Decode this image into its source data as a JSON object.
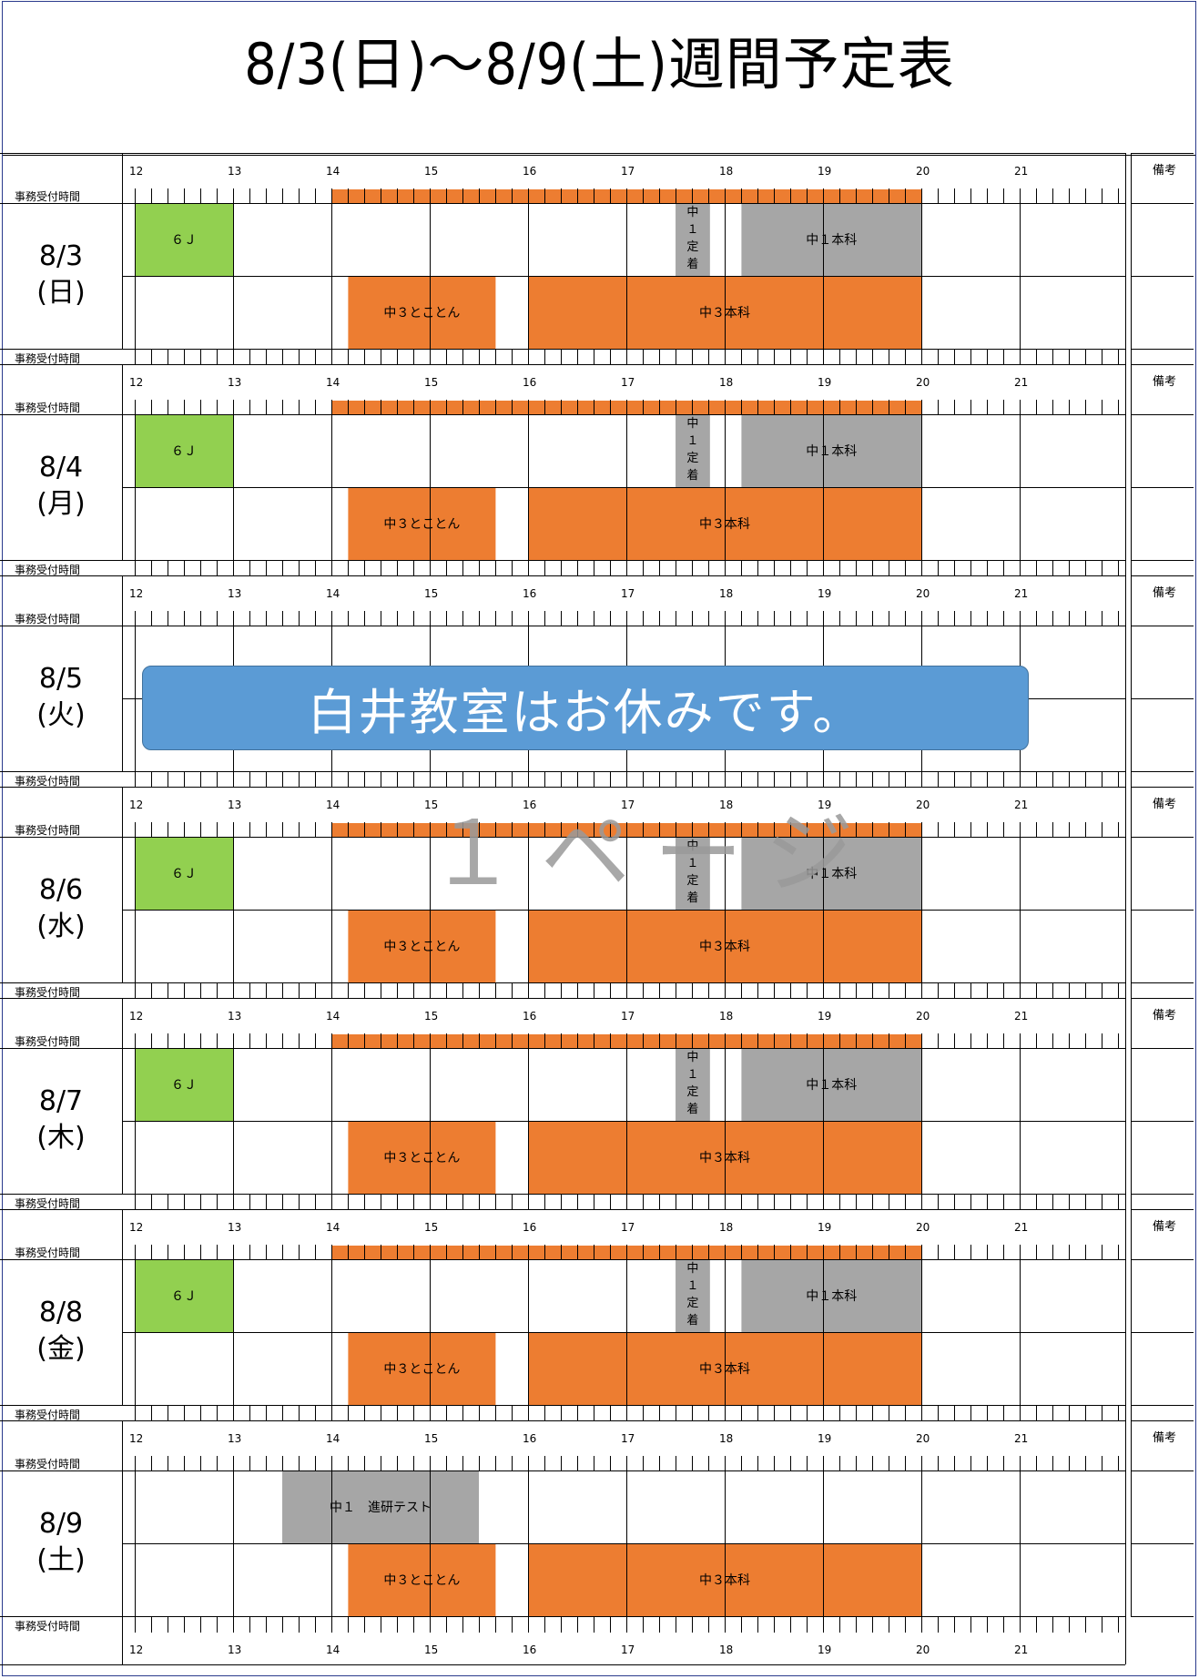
{
  "title": "8/3(日)～8/9(土)週間予定表",
  "labels": {
    "office_hours": "事務受付時間",
    "remarks": "備考"
  },
  "hours": [
    "12",
    "13",
    "14",
    "15",
    "16",
    "17",
    "18",
    "19",
    "20",
    "21"
  ],
  "colors": {
    "orange": "#ed7d31",
    "gray": "#a6a6a6",
    "green": "#92d050",
    "blue": "#5b9bd5"
  },
  "days": [
    {
      "date": "8/3",
      "weekday": "(日)",
      "office": {
        "start": 14,
        "end": 20
      },
      "events": [
        {
          "row": 0,
          "start": 12.0,
          "end": 13.0,
          "label": "６Ｊ",
          "color": "green"
        },
        {
          "row": 0,
          "start": 17.5,
          "end": 17.85,
          "label": "中１定着",
          "color": "gray",
          "vertical": true
        },
        {
          "row": 0,
          "start": 18.17,
          "end": 20.0,
          "label": "中１本科",
          "color": "gray"
        },
        {
          "row": 1,
          "start": 14.17,
          "end": 15.67,
          "label": "中３とことん",
          "color": "orange"
        },
        {
          "row": 1,
          "start": 16.0,
          "end": 20.0,
          "label": "中３本科",
          "color": "orange"
        }
      ]
    },
    {
      "date": "8/4",
      "weekday": "(月)",
      "office": {
        "start": 14,
        "end": 20
      },
      "events": [
        {
          "row": 0,
          "start": 12.0,
          "end": 13.0,
          "label": "６Ｊ",
          "color": "green"
        },
        {
          "row": 0,
          "start": 17.5,
          "end": 17.85,
          "label": "中１定着",
          "color": "gray",
          "vertical": true
        },
        {
          "row": 0,
          "start": 18.17,
          "end": 20.0,
          "label": "中１本科",
          "color": "gray"
        },
        {
          "row": 1,
          "start": 14.17,
          "end": 15.67,
          "label": "中３とことん",
          "color": "orange"
        },
        {
          "row": 1,
          "start": 16.0,
          "end": 20.0,
          "label": "中３本科",
          "color": "orange"
        }
      ]
    },
    {
      "date": "8/5",
      "weekday": "(火)",
      "office": null,
      "events": [],
      "closed": "白井教室はお休みです。"
    },
    {
      "date": "8/6",
      "weekday": "(水)",
      "office": {
        "start": 14,
        "end": 20
      },
      "events": [
        {
          "row": 0,
          "start": 12.0,
          "end": 13.0,
          "label": "６Ｊ",
          "color": "green"
        },
        {
          "row": 0,
          "start": 17.5,
          "end": 17.85,
          "label": "中１定着",
          "color": "gray",
          "vertical": true
        },
        {
          "row": 0,
          "start": 18.17,
          "end": 20.0,
          "label": "中１本科",
          "color": "gray"
        },
        {
          "row": 1,
          "start": 14.17,
          "end": 15.67,
          "label": "中３とことん",
          "color": "orange"
        },
        {
          "row": 1,
          "start": 16.0,
          "end": 20.0,
          "label": "中３本科",
          "color": "orange"
        }
      ]
    },
    {
      "date": "8/7",
      "weekday": "(木)",
      "office": {
        "start": 14,
        "end": 20
      },
      "events": [
        {
          "row": 0,
          "start": 12.0,
          "end": 13.0,
          "label": "６Ｊ",
          "color": "green"
        },
        {
          "row": 0,
          "start": 17.5,
          "end": 17.85,
          "label": "中１定着",
          "color": "gray",
          "vertical": true
        },
        {
          "row": 0,
          "start": 18.17,
          "end": 20.0,
          "label": "中１本科",
          "color": "gray"
        },
        {
          "row": 1,
          "start": 14.17,
          "end": 15.67,
          "label": "中３とことん",
          "color": "orange"
        },
        {
          "row": 1,
          "start": 16.0,
          "end": 20.0,
          "label": "中３本科",
          "color": "orange"
        }
      ]
    },
    {
      "date": "8/8",
      "weekday": "(金)",
      "office": {
        "start": 14,
        "end": 20
      },
      "events": [
        {
          "row": 0,
          "start": 12.0,
          "end": 13.0,
          "label": "６Ｊ",
          "color": "green"
        },
        {
          "row": 0,
          "start": 17.5,
          "end": 17.85,
          "label": "中１定着",
          "color": "gray",
          "vertical": true
        },
        {
          "row": 0,
          "start": 18.17,
          "end": 20.0,
          "label": "中１本科",
          "color": "gray"
        },
        {
          "row": 1,
          "start": 14.17,
          "end": 15.67,
          "label": "中３とことん",
          "color": "orange"
        },
        {
          "row": 1,
          "start": 16.0,
          "end": 20.0,
          "label": "中３本科",
          "color": "orange"
        }
      ]
    },
    {
      "date": "8/9",
      "weekday": "(土)",
      "office": null,
      "events": [
        {
          "row": 0,
          "start": 13.5,
          "end": 15.5,
          "label": "中１　進研テスト",
          "color": "gray"
        },
        {
          "row": 1,
          "start": 14.17,
          "end": 15.67,
          "label": "中３とことん",
          "color": "orange"
        },
        {
          "row": 1,
          "start": 16.0,
          "end": 20.0,
          "label": "中３本科",
          "color": "orange"
        }
      ]
    }
  ],
  "watermark": "１ページ"
}
